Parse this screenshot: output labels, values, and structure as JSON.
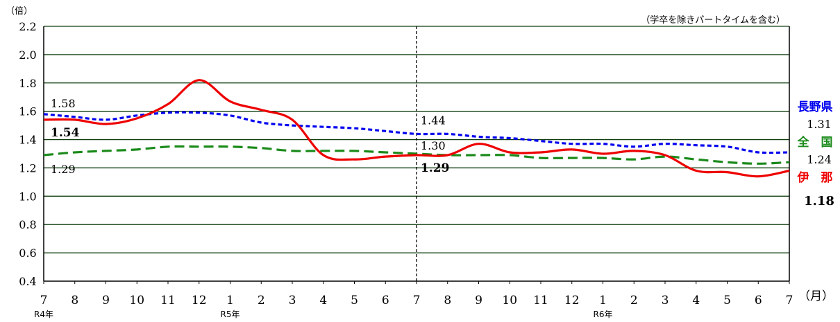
{
  "chart_data": {
    "type": "line",
    "ylabel": "（倍）",
    "xlabel": "（月）",
    "note": "（学卒を除きパートタイムを含む）",
    "ylim": [
      0.4,
      2.2
    ],
    "yticks": [
      "0.4",
      "0.6",
      "0.8",
      "1.0",
      "1.2",
      "1.4",
      "1.6",
      "1.8",
      "2.0",
      "2.2"
    ],
    "categories": [
      "7",
      "8",
      "9",
      "10",
      "11",
      "12",
      "1",
      "2",
      "3",
      "4",
      "5",
      "6",
      "7",
      "8",
      "9",
      "10",
      "11",
      "12",
      "1",
      "2",
      "3",
      "4",
      "5",
      "6",
      "7"
    ],
    "year_labels": [
      {
        "label": "R4年",
        "index": 0
      },
      {
        "label": "R5年",
        "index": 6
      },
      {
        "label": "R6年",
        "index": 18
      }
    ],
    "divider_index": 12,
    "grid": true,
    "series": [
      {
        "name": "長野県",
        "color": "#0000ee",
        "style": "dotted",
        "values": [
          1.58,
          1.56,
          1.54,
          1.57,
          1.59,
          1.59,
          1.57,
          1.52,
          1.5,
          1.49,
          1.48,
          1.46,
          1.44,
          1.44,
          1.42,
          1.41,
          1.39,
          1.37,
          1.37,
          1.35,
          1.37,
          1.36,
          1.35,
          1.31,
          1.31
        ]
      },
      {
        "name": "全　国",
        "color": "#1a8a1a",
        "style": "dashed",
        "values": [
          1.29,
          1.31,
          1.32,
          1.33,
          1.35,
          1.35,
          1.35,
          1.34,
          1.32,
          1.32,
          1.32,
          1.31,
          1.3,
          1.29,
          1.29,
          1.29,
          1.27,
          1.27,
          1.27,
          1.26,
          1.28,
          1.26,
          1.24,
          1.23,
          1.24
        ]
      },
      {
        "name": "伊　那",
        "color": "#ee0000",
        "style": "solid",
        "values": [
          1.54,
          1.54,
          1.51,
          1.55,
          1.65,
          1.82,
          1.67,
          1.61,
          1.54,
          1.29,
          1.26,
          1.28,
          1.29,
          1.29,
          1.37,
          1.31,
          1.31,
          1.33,
          1.3,
          1.32,
          1.29,
          1.18,
          1.17,
          1.14,
          1.18
        ]
      }
    ],
    "annotations": [
      {
        "series": 0,
        "index": 0,
        "text": "1.58",
        "bold": false
      },
      {
        "series": 2,
        "index": 0,
        "text": "1.54",
        "bold": true
      },
      {
        "series": 1,
        "index": 0,
        "text": "1.29",
        "bold": false
      },
      {
        "series": 0,
        "index": 12,
        "text": "1.44",
        "bold": false
      },
      {
        "series": 1,
        "index": 12,
        "text": "1.30",
        "bold": false
      },
      {
        "series": 2,
        "index": 12,
        "text": "1.29",
        "bold": true
      }
    ],
    "end_labels": [
      {
        "series": 0,
        "name": "長野県",
        "value": "1.31",
        "value_bold": false
      },
      {
        "series": 1,
        "name": "全　国",
        "value": "1.24",
        "value_bold": false
      },
      {
        "series": 2,
        "name": "伊　那",
        "value": "1.18",
        "value_bold": true
      }
    ]
  }
}
